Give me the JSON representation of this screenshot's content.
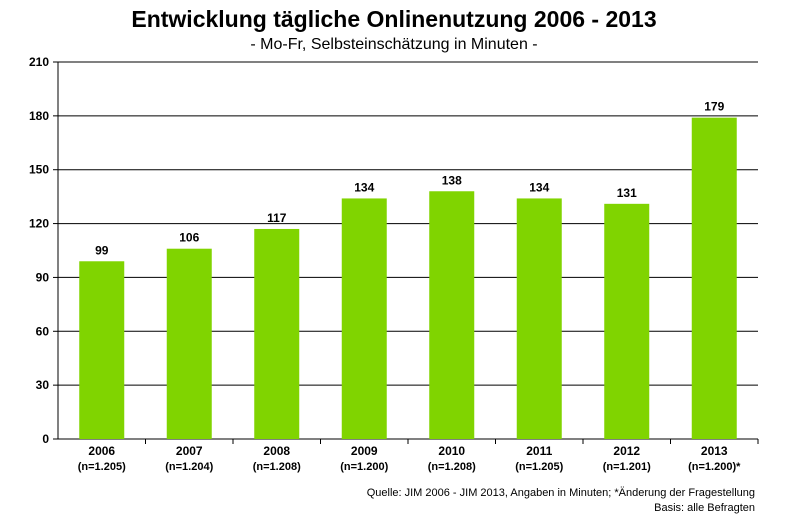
{
  "colors": {
    "bar": "#80d400",
    "axis": "#000000",
    "grid": "#000000"
  },
  "chart_data": {
    "type": "bar",
    "title": "Entwicklung tägliche Onlinenutzung 2006 - 2013",
    "subtitle": "- Mo-Fr, Selbsteinschätzung in Minuten -",
    "categories": [
      "2006",
      "2007",
      "2008",
      "2009",
      "2010",
      "2011",
      "2012",
      "2013"
    ],
    "category_sublabels": [
      "(n=1.205)",
      "(n=1.204)",
      "(n=1.208)",
      "(n=1.200)",
      "(n=1.208)",
      "(n=1.205)",
      "(n=1.201)",
      "(n=1.200)*"
    ],
    "values": [
      99,
      106,
      117,
      134,
      138,
      134,
      131,
      179
    ],
    "ylim": [
      0,
      210
    ],
    "yticks": [
      0,
      30,
      60,
      90,
      120,
      150,
      180,
      210
    ],
    "grid": true,
    "data_labels": true
  },
  "footnote": {
    "source": "Quelle: JIM 2006 - JIM 2013, Angaben in Minuten; *Änderung der Fragestellung",
    "basis": "Basis: alle Befragten"
  }
}
